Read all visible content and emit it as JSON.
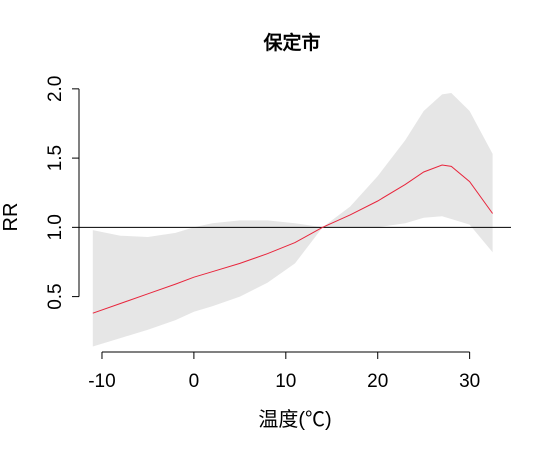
{
  "chart_data": {
    "type": "line",
    "title": "保定市",
    "xlabel": "温度(℃)",
    "ylabel": "RR",
    "xlim": [
      -12.5,
      34.5
    ],
    "ylim": [
      0.1,
      2.1
    ],
    "x_ticks": [
      -10,
      0,
      10,
      20,
      30
    ],
    "x_tick_labels": [
      "-10",
      "0",
      "10",
      "20",
      "30"
    ],
    "y_ticks": [
      0.5,
      1.0,
      1.5,
      2.0
    ],
    "y_tick_labels": [
      "0.5",
      "1.0",
      "1.5",
      "2.0"
    ],
    "reference_line": 1.0,
    "colors": {
      "line": "#e8253c",
      "band": "#e6e6e6",
      "reference": "#000000"
    },
    "series": [
      {
        "x": [
          -11,
          -8,
          -5,
          -2,
          0,
          2,
          5,
          8,
          11,
          14,
          17,
          20,
          23,
          25,
          27,
          28,
          30,
          32.5
        ],
        "y": [
          0.38,
          0.45,
          0.52,
          0.59,
          0.64,
          0.68,
          0.74,
          0.81,
          0.89,
          1.0,
          1.09,
          1.19,
          1.31,
          1.4,
          1.45,
          1.44,
          1.33,
          1.1
        ],
        "lower": [
          0.14,
          0.2,
          0.26,
          0.33,
          0.39,
          0.43,
          0.5,
          0.6,
          0.74,
          1.0,
          1.0,
          1.0,
          1.03,
          1.07,
          1.08,
          1.06,
          1.02,
          0.82
        ],
        "upper": [
          0.98,
          0.94,
          0.93,
          0.96,
          1.0,
          1.03,
          1.05,
          1.05,
          1.03,
          1.0,
          1.15,
          1.37,
          1.63,
          1.84,
          1.96,
          1.97,
          1.84,
          1.53
        ]
      }
    ]
  }
}
